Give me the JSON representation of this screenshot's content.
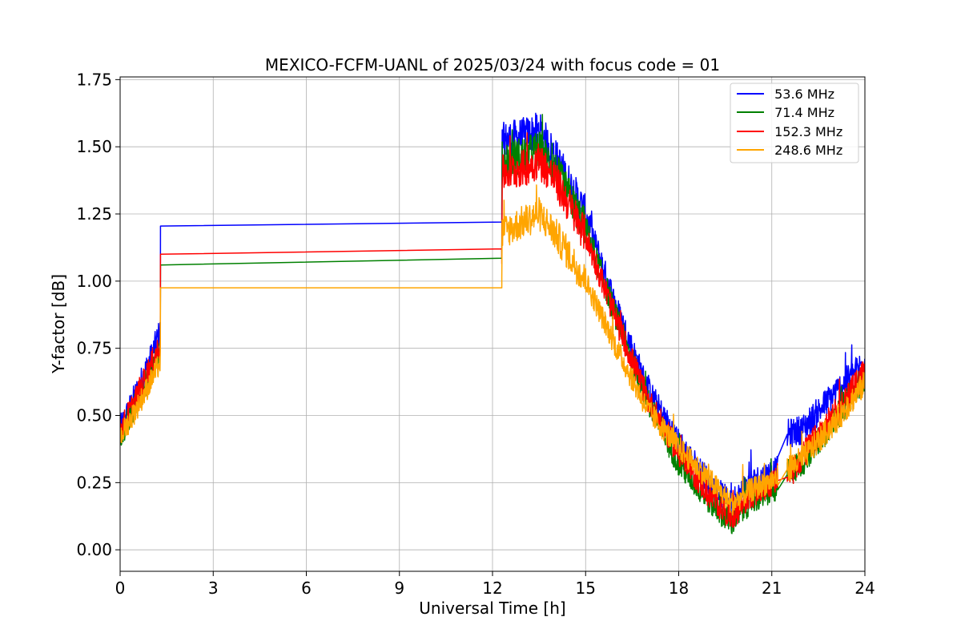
{
  "chart_data": {
    "type": "line",
    "title": "MEXICO-FCFM-UANL of 2025/03/24 with focus code = 01",
    "xlabel": "Universal Time [h]",
    "ylabel": "Y-factor [dB]",
    "xlim": [
      0,
      24
    ],
    "ylim": [
      -0.08,
      1.76
    ],
    "xticks": [
      0,
      3,
      6,
      9,
      12,
      15,
      18,
      21,
      24
    ],
    "xtick_labels": [
      "0",
      "3",
      "6",
      "9",
      "12",
      "15",
      "18",
      "21",
      "24"
    ],
    "yticks": [
      0.0,
      0.25,
      0.5,
      0.75,
      1.0,
      1.25,
      1.5,
      1.75
    ],
    "ytick_labels": [
      "0.00",
      "0.25",
      "0.50",
      "0.75",
      "1.00",
      "1.25",
      "1.50",
      "1.75"
    ],
    "grid": true,
    "legend_position": "top-right",
    "series": [
      {
        "name": " 53.6 MHz",
        "color": "#0000ff",
        "noise": 0.05,
        "x": [
          0,
          0.5,
          1.0,
          1.3,
          1.3,
          12.3,
          12.3,
          13.0,
          13.5,
          14.0,
          15.0,
          16.0,
          17.0,
          18.0,
          19.0,
          19.7,
          20.3,
          21.2,
          21.5,
          22.0,
          23.0,
          24.0
        ],
        "y": [
          0.45,
          0.58,
          0.72,
          0.82,
          1.205,
          1.22,
          1.52,
          1.54,
          1.56,
          1.47,
          1.25,
          0.9,
          0.6,
          0.4,
          0.25,
          0.17,
          0.25,
          0.3,
          0.43,
          0.45,
          0.58,
          0.7
        ]
      },
      {
        "name": " 71.4 MHz",
        "color": "#008000",
        "noise": 0.05,
        "x": [
          0,
          0.5,
          1.0,
          1.3,
          1.3,
          12.3,
          12.3,
          13.0,
          13.5,
          14.0,
          15.0,
          16.0,
          17.0,
          18.0,
          19.0,
          19.7,
          20.3,
          21.2,
          21.5,
          22.0,
          23.0,
          24.0
        ],
        "y": [
          0.42,
          0.54,
          0.66,
          0.74,
          1.06,
          1.085,
          1.45,
          1.47,
          1.49,
          1.42,
          1.2,
          0.86,
          0.55,
          0.32,
          0.18,
          0.1,
          0.18,
          0.23,
          0.28,
          0.33,
          0.48,
          0.65
        ]
      },
      {
        "name": " 152.3 MHz",
        "color": "#ff0000",
        "noise": 0.05,
        "x": [
          0,
          0.5,
          1.0,
          1.3,
          1.3,
          12.3,
          12.3,
          13.0,
          13.5,
          14.0,
          15.0,
          16.0,
          17.0,
          18.0,
          19.0,
          19.7,
          20.3,
          21.2,
          21.5,
          22.0,
          23.0,
          24.0
        ],
        "y": [
          0.44,
          0.56,
          0.69,
          0.77,
          1.1,
          1.12,
          1.4,
          1.42,
          1.45,
          1.38,
          1.17,
          0.85,
          0.56,
          0.36,
          0.2,
          0.12,
          0.2,
          0.26,
          0.27,
          0.35,
          0.5,
          0.66
        ]
      },
      {
        "name": " 248.6 MHz",
        "color": "#ffa500",
        "noise": 0.045,
        "x": [
          0,
          0.5,
          1.0,
          1.3,
          1.3,
          12.3,
          12.3,
          13.0,
          13.5,
          14.0,
          15.0,
          16.0,
          17.0,
          18.0,
          19.0,
          19.7,
          20.3,
          21.2,
          21.5,
          22.0,
          23.0,
          24.0
        ],
        "y": [
          0.42,
          0.52,
          0.63,
          0.7,
          0.975,
          0.975,
          1.18,
          1.22,
          1.25,
          1.18,
          1.0,
          0.75,
          0.52,
          0.38,
          0.26,
          0.17,
          0.22,
          0.27,
          0.3,
          0.34,
          0.47,
          0.62
        ]
      }
    ]
  }
}
